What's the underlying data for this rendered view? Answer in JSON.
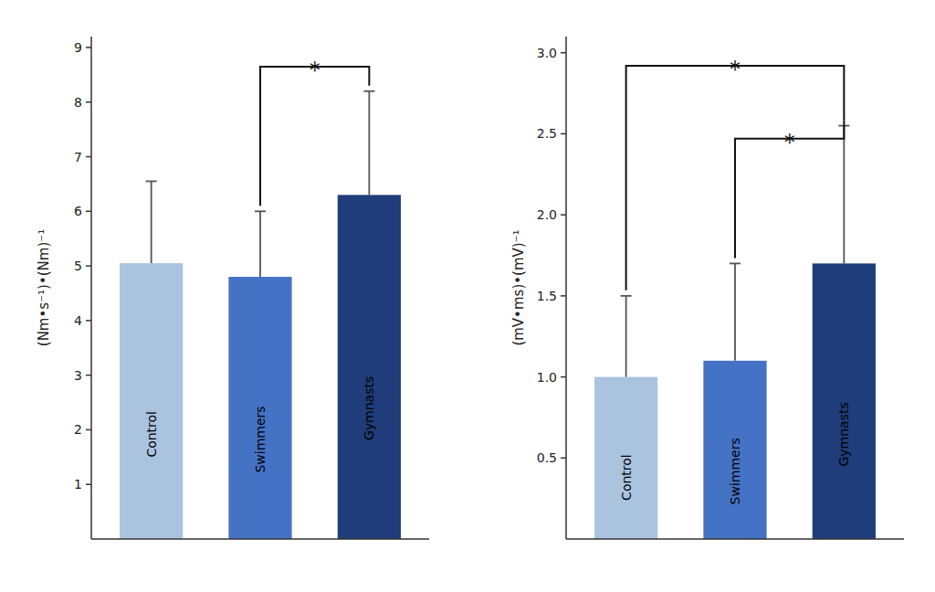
{
  "chart_data": [
    {
      "type": "bar",
      "categories": [
        "Control",
        "Swimmers",
        "Gymnasts"
      ],
      "values": [
        5.05,
        4.8,
        6.3
      ],
      "errors": [
        1.5,
        1.2,
        1.9
      ],
      "colors": [
        "#aac4e0",
        "#4472c4",
        "#1f3d7a"
      ],
      "ylabel": "(Nm•s⁻¹)•(Nm)⁻¹",
      "ylim": [
        0,
        9.2
      ],
      "yticks": [
        1,
        2,
        3,
        4,
        5,
        6,
        7,
        8,
        9
      ],
      "grid": false,
      "annotations": [
        {
          "label": "*",
          "from": "Swimmers",
          "to": "Gymnasts",
          "y": 8.65
        }
      ]
    },
    {
      "type": "bar",
      "categories": [
        "Control",
        "Swimmers",
        "Gymnasts"
      ],
      "values": [
        1.0,
        1.1,
        1.7
      ],
      "errors": [
        0.5,
        0.6,
        0.85
      ],
      "colors": [
        "#aac4e0",
        "#4472c4",
        "#1f3d7a"
      ],
      "ylabel": "(mV•ms)•(mV)⁻¹",
      "ylim": [
        0,
        3.1
      ],
      "yticks": [
        0.5,
        {
          "value": 1.0,
          "label": "1.0"
        },
        1.5,
        {
          "value": 2.0,
          "label": "2.0"
        },
        2.5,
        {
          "value": 3.0,
          "label": "3.0"
        }
      ],
      "grid": false,
      "annotations": [
        {
          "label": "*",
          "from": "Control",
          "to": "Gymnasts",
          "y": 2.92
        },
        {
          "label": "*",
          "from": "Swimmers",
          "to": "Gymnasts",
          "y": 2.47
        }
      ]
    }
  ]
}
